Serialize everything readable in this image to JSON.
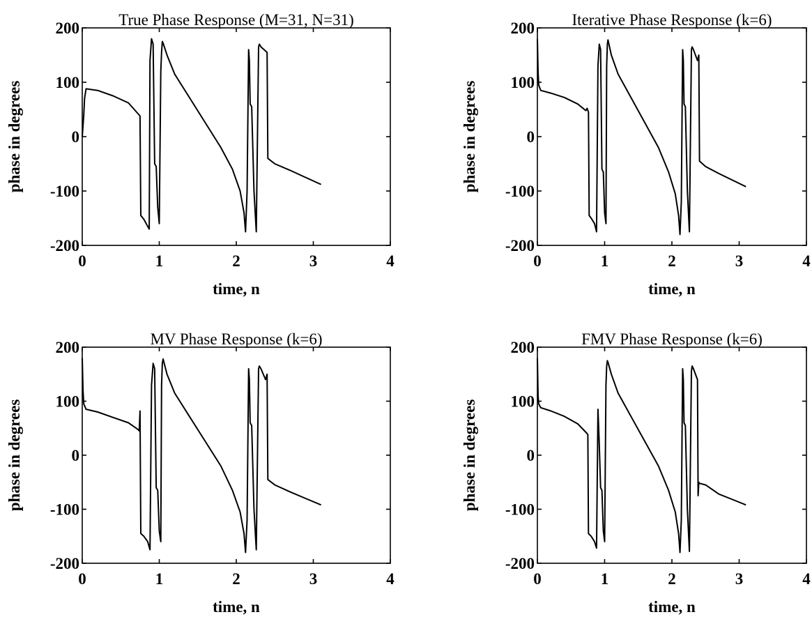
{
  "chart_data": [
    {
      "type": "line",
      "title": "True Phase Response  (M=31, N=31)",
      "xlabel": "time, n",
      "ylabel": "phase in degrees",
      "xlim": [
        0,
        4
      ],
      "ylim": [
        -200,
        200
      ],
      "xticks": [
        "0",
        "1",
        "2",
        "3",
        "4"
      ],
      "yticks": [
        "200",
        "100",
        "0",
        "-100",
        "-200"
      ],
      "grid": false,
      "series": [
        {
          "x": [
            0,
            0.02,
            0.03,
            0.05,
            0.2,
            0.4,
            0.6,
            0.75,
            0.76,
            0.8,
            0.85,
            0.87,
            0.88,
            0.9,
            0.92,
            0.94,
            0.96,
            0.98,
            1.0,
            1.02,
            1.03,
            1.04,
            1.05,
            1.1,
            1.2,
            1.4,
            1.6,
            1.8,
            1.95,
            2.05,
            2.1,
            2.12,
            2.14,
            2.16,
            2.17,
            2.18,
            2.2,
            2.23,
            2.26,
            2.29,
            2.3,
            2.32,
            2.4,
            2.41,
            2.5,
            2.7,
            2.9,
            3.1
          ],
          "y": [
            0,
            40,
            70,
            88,
            85,
            75,
            62,
            38,
            -145,
            -152,
            -165,
            -170,
            140,
            180,
            170,
            -50,
            -55,
            -130,
            -160,
            120,
            155,
            175,
            172,
            150,
            115,
            70,
            25,
            -20,
            -60,
            -100,
            -140,
            -175,
            -100,
            160,
            140,
            60,
            55,
            -100,
            -175,
            165,
            170,
            165,
            155,
            -40,
            -50,
            -62,
            -75,
            -88
          ]
        }
      ]
    },
    {
      "type": "line",
      "title": "Iterative Phase Response (k=6)",
      "xlabel": "time, n",
      "ylabel": "phase in degrees",
      "xlim": [
        0,
        4
      ],
      "ylim": [
        -200,
        200
      ],
      "xticks": [
        "0",
        "1",
        "2",
        "3",
        "4"
      ],
      "yticks": [
        "200",
        "100",
        "0",
        "-100",
        "-200"
      ],
      "grid": false,
      "series": [
        {
          "x": [
            0,
            0.01,
            0.02,
            0.05,
            0.2,
            0.4,
            0.6,
            0.72,
            0.74,
            0.76,
            0.77,
            0.8,
            0.85,
            0.88,
            0.9,
            0.92,
            0.94,
            0.96,
            0.98,
            1.0,
            1.02,
            1.03,
            1.04,
            1.05,
            1.1,
            1.2,
            1.4,
            1.6,
            1.8,
            1.95,
            2.05,
            2.1,
            2.12,
            2.14,
            2.16,
            2.17,
            2.18,
            2.2,
            2.23,
            2.26,
            2.29,
            2.3,
            2.32,
            2.38,
            2.4,
            2.41,
            2.5,
            2.7,
            2.9,
            3.1
          ],
          "y": [
            180,
            120,
            95,
            85,
            80,
            72,
            60,
            48,
            52,
            45,
            -145,
            -150,
            -160,
            -175,
            130,
            170,
            160,
            -60,
            -65,
            -140,
            -160,
            130,
            170,
            178,
            150,
            115,
            70,
            25,
            -20,
            -65,
            -105,
            -145,
            -180,
            -120,
            160,
            140,
            60,
            55,
            -100,
            -175,
            160,
            165,
            160,
            140,
            150,
            -45,
            -55,
            -68,
            -80,
            -92
          ]
        }
      ]
    },
    {
      "type": "line",
      "title": "MV Phase Response (k=6)",
      "xlabel": "time, n",
      "ylabel": "phase in degrees",
      "xlim": [
        0,
        4
      ],
      "ylim": [
        -200,
        200
      ],
      "xticks": [
        "0",
        "1",
        "2",
        "3",
        "4"
      ],
      "yticks": [
        "200",
        "100",
        "0",
        "-100",
        "-200"
      ],
      "grid": false,
      "series": [
        {
          "x": [
            0,
            0.01,
            0.02,
            0.05,
            0.2,
            0.4,
            0.6,
            0.72,
            0.74,
            0.75,
            0.76,
            0.8,
            0.85,
            0.88,
            0.9,
            0.92,
            0.94,
            0.96,
            0.98,
            1.0,
            1.02,
            1.03,
            1.04,
            1.05,
            1.1,
            1.2,
            1.4,
            1.6,
            1.8,
            1.95,
            2.05,
            2.1,
            2.12,
            2.14,
            2.16,
            2.17,
            2.18,
            2.2,
            2.23,
            2.26,
            2.29,
            2.3,
            2.32,
            2.38,
            2.4,
            2.41,
            2.5,
            2.7,
            2.9,
            3.1
          ],
          "y": [
            180,
            120,
            95,
            85,
            80,
            70,
            60,
            48,
            45,
            82,
            -145,
            -150,
            -160,
            -175,
            130,
            170,
            160,
            -60,
            -65,
            -140,
            -160,
            130,
            170,
            178,
            150,
            115,
            70,
            25,
            -20,
            -65,
            -105,
            -145,
            -180,
            -120,
            160,
            140,
            60,
            55,
            -100,
            -175,
            160,
            165,
            160,
            140,
            150,
            -45,
            -55,
            -68,
            -80,
            -92
          ]
        }
      ]
    },
    {
      "type": "line",
      "title": "FMV Phase Response (k=6)",
      "xlabel": "time, n",
      "ylabel": "phase in degrees",
      "xlim": [
        0,
        4
      ],
      "ylim": [
        -200,
        200
      ],
      "xticks": [
        "0",
        "1",
        "2",
        "3",
        "4"
      ],
      "yticks": [
        "200",
        "100",
        "0",
        "-100",
        "-200"
      ],
      "grid": false,
      "series": [
        {
          "x": [
            0,
            0.01,
            0.02,
            0.05,
            0.2,
            0.4,
            0.6,
            0.74,
            0.75,
            0.76,
            0.8,
            0.85,
            0.88,
            0.9,
            0.92,
            0.94,
            0.96,
            0.98,
            1.0,
            1.02,
            1.03,
            1.04,
            1.05,
            1.1,
            1.2,
            1.4,
            1.6,
            1.8,
            1.95,
            2.05,
            2.1,
            2.12,
            2.14,
            2.16,
            2.17,
            2.18,
            2.2,
            2.23,
            2.26,
            2.29,
            2.3,
            2.32,
            2.38,
            2.39,
            2.4,
            2.41,
            2.5,
            2.7,
            2.9,
            3.1
          ],
          "y": [
            180,
            110,
            95,
            88,
            82,
            72,
            58,
            40,
            38,
            -145,
            -150,
            -160,
            -172,
            85,
            20,
            -60,
            -65,
            -140,
            -160,
            130,
            165,
            175,
            172,
            150,
            115,
            70,
            25,
            -20,
            -65,
            -105,
            -145,
            -180,
            -120,
            160,
            140,
            60,
            55,
            -100,
            -178,
            155,
            165,
            160,
            140,
            -75,
            -50,
            -52,
            -55,
            -72,
            -82,
            -92
          ]
        }
      ]
    }
  ]
}
